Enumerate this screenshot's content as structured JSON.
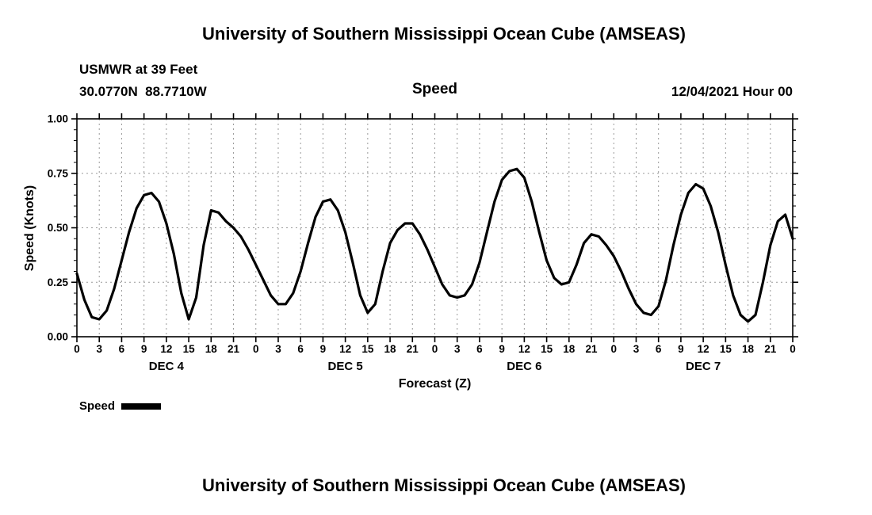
{
  "page": {
    "top_title": "University of Southern Mississippi Ocean Cube (AMSEAS)",
    "bottom_title": "University of Southern Mississippi Ocean Cube (AMSEAS)"
  },
  "header": {
    "station": "USMWR at 39 Feet",
    "coordinates": "30.0770N  88.7710W",
    "plot_title": "Speed",
    "datetime": "12/04/2021 Hour 00"
  },
  "legend": {
    "label": "Speed"
  },
  "chart_data": {
    "type": "line",
    "title": "Speed",
    "xlabel": "Forecast (Z)",
    "ylabel": "Speed (Knots)",
    "xlim": [
      0,
      96
    ],
    "ylim": [
      0.0,
      1.0
    ],
    "grid": true,
    "grid_style": "dotted",
    "y_ticks": [
      0.0,
      0.25,
      0.5,
      0.75,
      1.0
    ],
    "y_tick_labels": [
      "0.00",
      "0.25",
      "0.50",
      "0.75",
      "1.00"
    ],
    "y_minor_tick_step": 0.05,
    "x_tick_interval_hours": 3,
    "x_tick_labels": [
      "0",
      "3",
      "6",
      "9",
      "12",
      "15",
      "18",
      "21",
      "0",
      "3",
      "6",
      "9",
      "12",
      "15",
      "18",
      "21",
      "0",
      "3",
      "6",
      "9",
      "12",
      "15",
      "18",
      "21",
      "0",
      "3",
      "6",
      "9",
      "12",
      "15",
      "18",
      "21",
      "0"
    ],
    "date_labels": [
      {
        "label": "DEC 4",
        "hour": 12
      },
      {
        "label": "DEC 5",
        "hour": 36
      },
      {
        "label": "DEC 6",
        "hour": 60
      },
      {
        "label": "DEC 7",
        "hour": 84
      }
    ],
    "series": [
      {
        "name": "Speed",
        "color": "#000000",
        "line_width": 3.2,
        "x": [
          0,
          1,
          2,
          3,
          4,
          5,
          6,
          7,
          8,
          9,
          10,
          11,
          12,
          13,
          14,
          15,
          16,
          17,
          18,
          19,
          20,
          21,
          22,
          23,
          24,
          25,
          26,
          27,
          28,
          29,
          30,
          31,
          32,
          33,
          34,
          35,
          36,
          37,
          38,
          39,
          40,
          41,
          42,
          43,
          44,
          45,
          46,
          47,
          48,
          49,
          50,
          51,
          52,
          53,
          54,
          55,
          56,
          57,
          58,
          59,
          60,
          61,
          62,
          63,
          64,
          65,
          66,
          67,
          68,
          69,
          70,
          71,
          72,
          73,
          74,
          75,
          76,
          77,
          78,
          79,
          80,
          81,
          82,
          83,
          84,
          85,
          86,
          87,
          88,
          89,
          90,
          91,
          92,
          93,
          94,
          95,
          96
        ],
        "y": [
          0.29,
          0.17,
          0.09,
          0.08,
          0.12,
          0.22,
          0.35,
          0.48,
          0.59,
          0.65,
          0.66,
          0.62,
          0.52,
          0.38,
          0.2,
          0.08,
          0.18,
          0.42,
          0.58,
          0.57,
          0.53,
          0.5,
          0.46,
          0.4,
          0.33,
          0.26,
          0.19,
          0.15,
          0.15,
          0.2,
          0.3,
          0.43,
          0.55,
          0.62,
          0.63,
          0.58,
          0.48,
          0.34,
          0.19,
          0.11,
          0.15,
          0.3,
          0.43,
          0.49,
          0.52,
          0.52,
          0.47,
          0.4,
          0.32,
          0.24,
          0.19,
          0.18,
          0.19,
          0.24,
          0.34,
          0.48,
          0.62,
          0.72,
          0.76,
          0.77,
          0.73,
          0.62,
          0.48,
          0.35,
          0.27,
          0.24,
          0.25,
          0.33,
          0.43,
          0.47,
          0.46,
          0.42,
          0.37,
          0.3,
          0.22,
          0.15,
          0.11,
          0.1,
          0.14,
          0.26,
          0.42,
          0.56,
          0.66,
          0.7,
          0.68,
          0.6,
          0.48,
          0.33,
          0.19,
          0.1,
          0.07,
          0.1,
          0.25,
          0.42,
          0.53,
          0.56,
          0.45
        ]
      }
    ]
  }
}
